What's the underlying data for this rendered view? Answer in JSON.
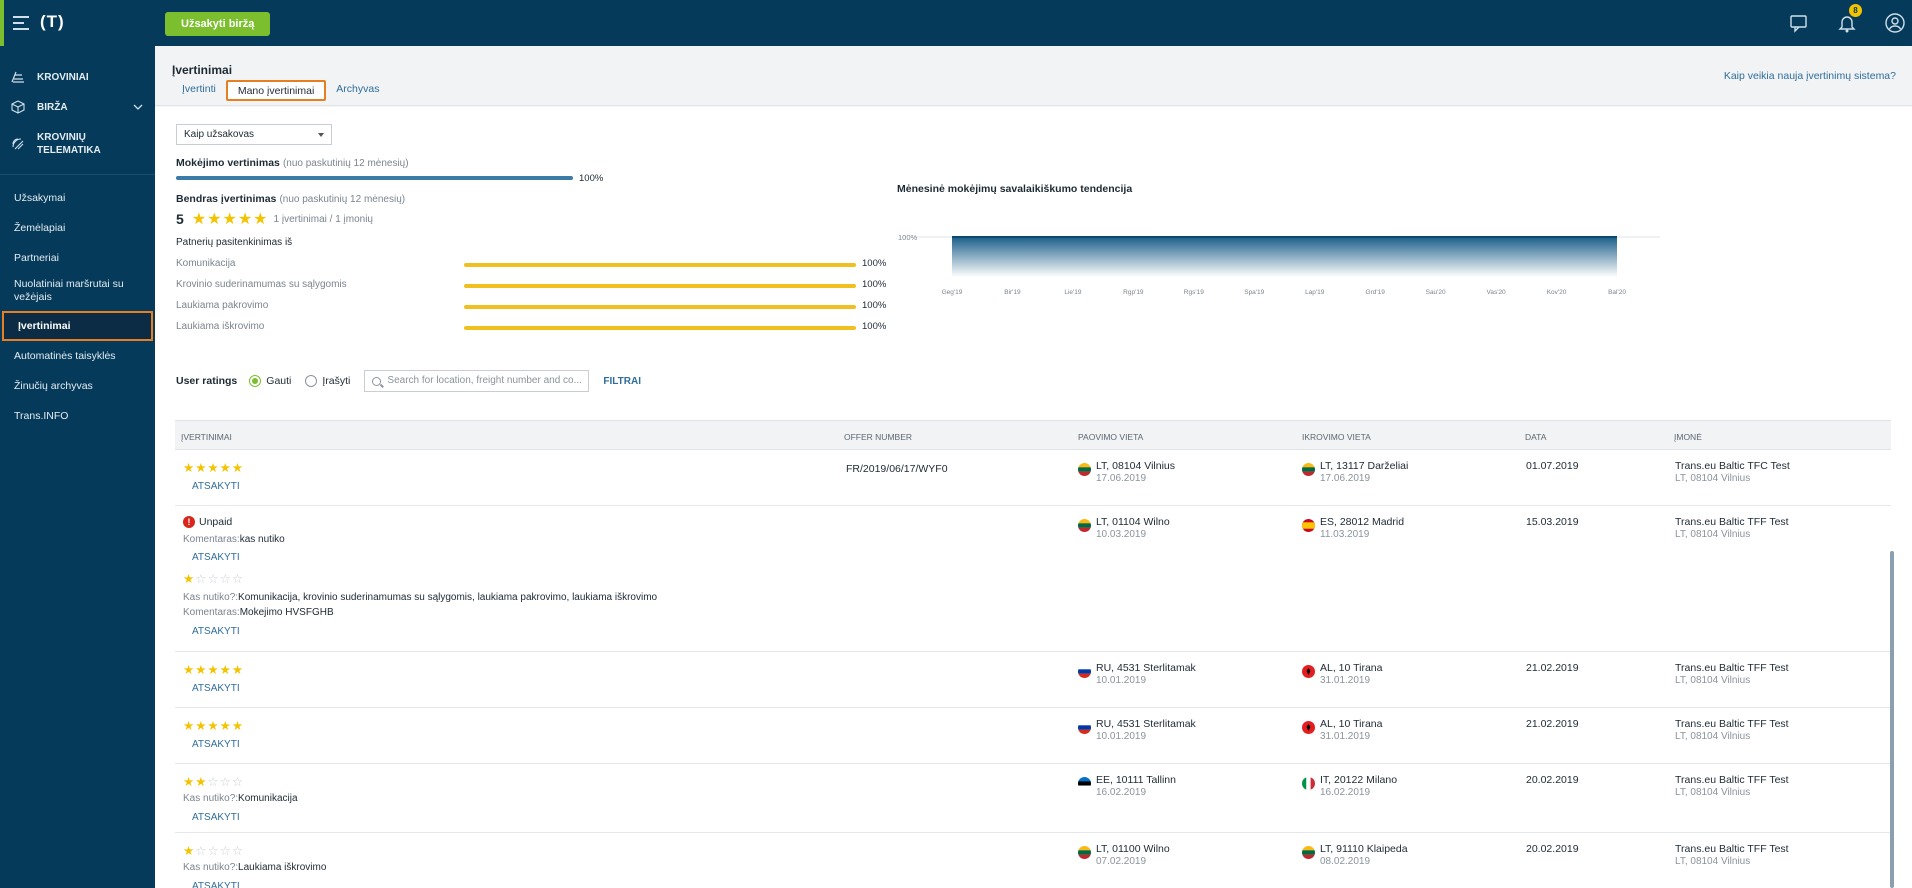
{
  "topbar": {
    "logo": "(T)",
    "order_button": "Užsakyti biržą",
    "notifications_count": "8"
  },
  "sidebar": {
    "main": [
      {
        "label": "KROVINIAI"
      },
      {
        "label": "BIRŽA"
      },
      {
        "label_line1": "KROVINIŲ",
        "label_line2": "TELEMATIKA"
      }
    ],
    "links": [
      {
        "label": "Užsakymai"
      },
      {
        "label": "Žemėlapiai"
      },
      {
        "label": "Partneriai"
      },
      {
        "label_line1": "Nuolatiniai maršrutai su",
        "label_line2": "vežėjais"
      },
      {
        "label": "Įvertinimai"
      },
      {
        "label": "Automatinės taisyklės"
      },
      {
        "label": "Žinučių archyvas"
      },
      {
        "label": "Trans.INFO"
      }
    ]
  },
  "header": {
    "title": "Įvertinimai",
    "tabs": [
      "Įvertinti",
      "Mano įvertinimai",
      "Archyvas"
    ],
    "help_link": "Kaip veikia nauja įvertinimų sistema?"
  },
  "summary": {
    "role_select": "Kaip užsakovas",
    "payment_title": "Mokėjimo vertinimas",
    "payment_sub": "(nuo paskutinių 12 mėnesių)",
    "payment_pct": "100%",
    "payment_fraction": 1.0,
    "general_title": "Bendras įvertinimas",
    "general_sub": "(nuo paskutinių 12 mėnesių)",
    "score": "5",
    "stars": 5,
    "score_meta": "1 įvertinimai / 1 įmonių",
    "partners_title": "Patnerių pasitenkinimas iš",
    "criteria": [
      {
        "label": "Komunikacija",
        "pct": "100%",
        "value": 1.0
      },
      {
        "label": "Krovinio suderinamumas su sąlygomis",
        "pct": "100%",
        "value": 1.0
      },
      {
        "label": "Laukiama pakrovimo",
        "pct": "100%",
        "value": 1.0
      },
      {
        "label": "Laukiama iškrovimo",
        "pct": "100%",
        "value": 1.0
      }
    ]
  },
  "chart_data": {
    "type": "area",
    "title": "Mėnesinė mokėjimų savalaikiškumo tendencija",
    "y_tick": "100%",
    "x": [
      "Geg'19",
      "Bir'19",
      "Lie'19",
      "Rgp'19",
      "Rgs'19",
      "Spa'19",
      "Lap'19",
      "Grd'19",
      "Sau'20",
      "Vas'20",
      "Kov'20",
      "Bal'20"
    ],
    "values": [
      100,
      100,
      100,
      100,
      100,
      100,
      100,
      100,
      100,
      100,
      100,
      100
    ],
    "ylim": [
      0,
      100
    ]
  },
  "filters": {
    "title": "User ratings",
    "radio_received": "Gauti",
    "radio_given": "Įrašyti",
    "search_placeholder": "Search for location, freight number and co...",
    "filter_link": "FILTRAI"
  },
  "table": {
    "headers": [
      "ĮVERTINIMAI",
      "OFFER NUMBER",
      "PAOVIMO VIETA",
      "IKROVIMO VIETA",
      "DATA",
      "ĮMONĖ"
    ],
    "reply_label": "ATSAKYTI",
    "unpaid_label": "Unpaid",
    "comment_label": "Komentaras:",
    "what_label": "Kas nutiko?:",
    "rows": [
      {
        "stars": 5,
        "offer": "FR/2019/06/17/WYF0",
        "from": "LT, 08104 Vilnius",
        "from_date": "17.06.2019",
        "from_flag": "lt",
        "to": "LT, 13117 Darželiai",
        "to_date": "17.06.2019",
        "to_flag": "lt",
        "date": "01.07.2019",
        "company": "Trans.eu Baltic TFC Test",
        "company_addr": "LT, 08104 Vilnius"
      },
      {
        "stars": 1,
        "offer": "",
        "unpaid_comment": "kas nutiko",
        "what": "Komunikacija, krovinio suderinamumas su sąlygomis, laukiama pakrovimo, laukiama iškrovimo",
        "comment": "Mokejimo HVSFGHB",
        "from": "LT, 01104 Wilno",
        "from_date": "10.03.2019",
        "from_flag": "lt",
        "to": "ES, 28012 Madrid",
        "to_date": "11.03.2019",
        "to_flag": "es",
        "date": "15.03.2019",
        "company": "Trans.eu Baltic TFF Test",
        "company_addr": "LT, 08104 Vilnius"
      },
      {
        "stars": 5,
        "offer": "",
        "from": "RU, 4531 Sterlitamak",
        "from_date": "10.01.2019",
        "from_flag": "ru",
        "to": "AL, 10 Tirana",
        "to_date": "31.01.2019",
        "to_flag": "al",
        "date": "21.02.2019",
        "company": "Trans.eu Baltic TFF Test",
        "company_addr": "LT, 08104 Vilnius"
      },
      {
        "stars": 5,
        "offer": "",
        "from": "RU, 4531 Sterlitamak",
        "from_date": "10.01.2019",
        "from_flag": "ru",
        "to": "AL, 10 Tirana",
        "to_date": "31.01.2019",
        "to_flag": "al",
        "date": "21.02.2019",
        "company": "Trans.eu Baltic TFF Test",
        "company_addr": "LT, 08104 Vilnius"
      },
      {
        "stars": 2,
        "offer": "",
        "what": "Komunikacija",
        "from": "EE, 10111 Tallinn",
        "from_date": "16.02.2019",
        "from_flag": "ee",
        "to": "IT, 20122 Milano",
        "to_date": "16.02.2019",
        "to_flag": "it",
        "date": "20.02.2019",
        "company": "Trans.eu Baltic TFF Test",
        "company_addr": "LT, 08104 Vilnius"
      },
      {
        "stars": 1,
        "offer": "",
        "what": "Laukiama iškrovimo",
        "from": "LT, 01100 Wilno",
        "from_date": "07.02.2019",
        "from_flag": "lt",
        "to": "LT, 91110 Klaipeda",
        "to_date": "08.02.2019",
        "to_flag": "lt",
        "date": "20.02.2019",
        "company": "Trans.eu Baltic TFF Test",
        "company_addr": "LT, 08104 Vilnius"
      }
    ]
  },
  "colors": {
    "navy": "#063a5a",
    "green": "#7bbf2e",
    "star": "#f3c300",
    "link": "#2f6d9c",
    "highlight": "#e67e22"
  }
}
